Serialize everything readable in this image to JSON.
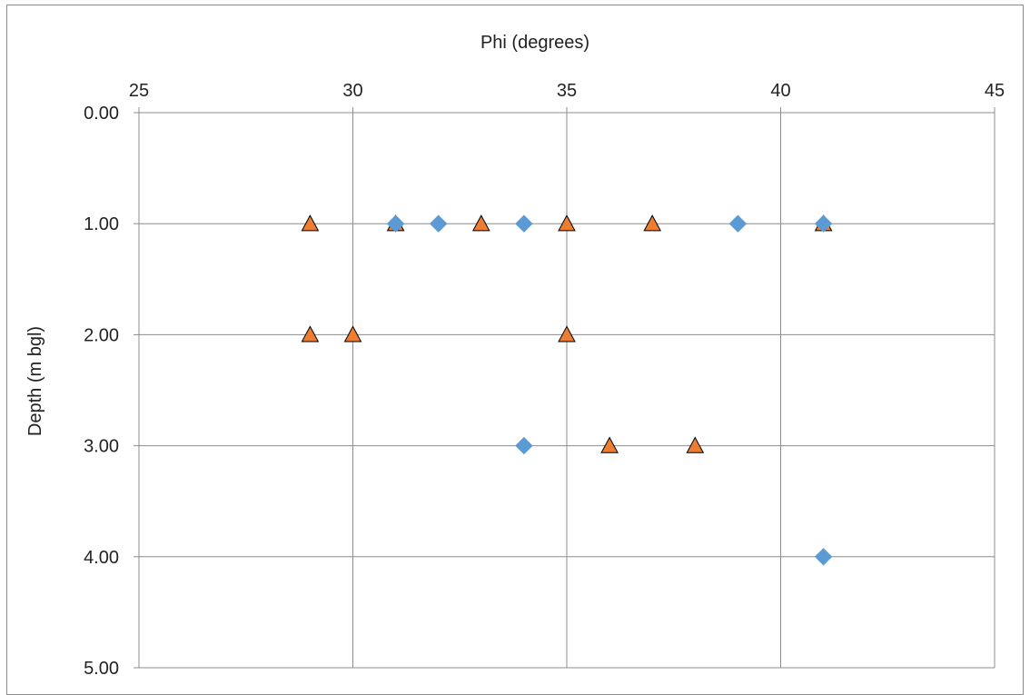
{
  "chart_data": {
    "type": "scatter",
    "title": "",
    "xlabel": "Phi (degrees)",
    "ylabel": "Depth (m bgl)",
    "xlim": [
      25,
      45
    ],
    "ylim": [
      0,
      5
    ],
    "y_inverted": true,
    "x_axis_position": "top",
    "x_ticks": [
      25,
      30,
      35,
      40,
      45
    ],
    "x_tick_labels": [
      "25",
      "30",
      "35",
      "40",
      "45"
    ],
    "y_ticks": [
      0,
      1,
      2,
      3,
      4,
      5
    ],
    "y_tick_labels": [
      "0.00",
      "1.00",
      "2.00",
      "3.00",
      "4.00",
      "5.00"
    ],
    "grid": true,
    "legend": "none",
    "series": [
      {
        "marker": "triangle",
        "color": "#ED7D31",
        "points": [
          {
            "x": 29,
            "y": 1
          },
          {
            "x": 31,
            "y": 1
          },
          {
            "x": 33,
            "y": 1
          },
          {
            "x": 35,
            "y": 1
          },
          {
            "x": 37,
            "y": 1
          },
          {
            "x": 41,
            "y": 1
          },
          {
            "x": 29,
            "y": 2
          },
          {
            "x": 30,
            "y": 2
          },
          {
            "x": 35,
            "y": 2
          },
          {
            "x": 36,
            "y": 3
          },
          {
            "x": 38,
            "y": 3
          }
        ]
      },
      {
        "marker": "diamond",
        "color": "#5B9BD5",
        "points": [
          {
            "x": 31,
            "y": 1
          },
          {
            "x": 32,
            "y": 1
          },
          {
            "x": 34,
            "y": 1
          },
          {
            "x": 39,
            "y": 1
          },
          {
            "x": 41,
            "y": 1
          },
          {
            "x": 34,
            "y": 3
          },
          {
            "x": 41,
            "y": 4
          }
        ]
      }
    ]
  }
}
